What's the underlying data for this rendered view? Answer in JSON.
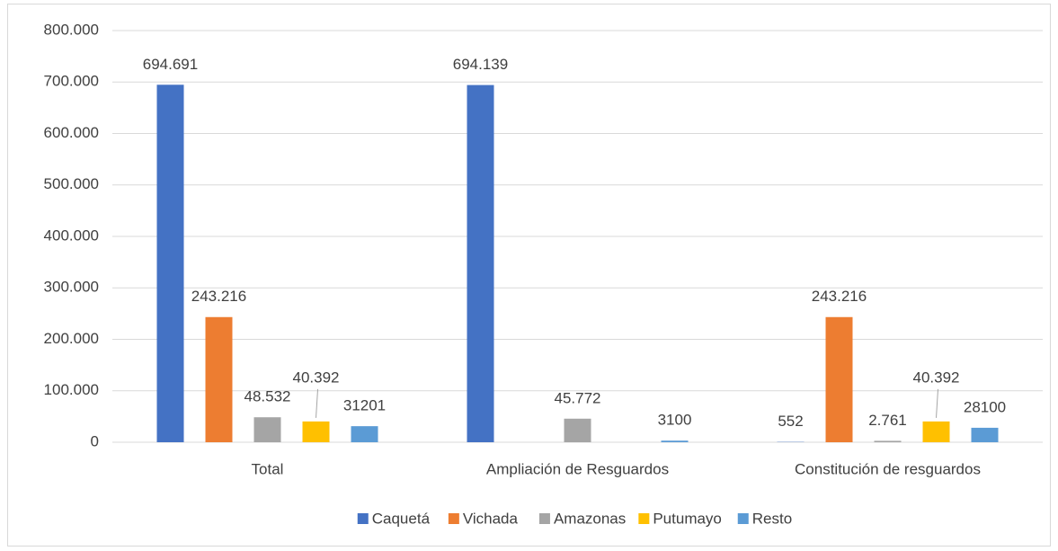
{
  "chart_data": {
    "type": "bar",
    "categories": [
      "Total",
      "Ampliación de Resguardos",
      "Constitución de resguardos"
    ],
    "series": [
      {
        "name": "Caquetá",
        "color": "#4472c4",
        "values": [
          694691,
          694139,
          552
        ],
        "value_labels": [
          "694.691",
          "694.139",
          "552"
        ]
      },
      {
        "name": "Vichada",
        "color": "#ed7d31",
        "values": [
          243216,
          null,
          243216
        ],
        "value_labels": [
          "243.216",
          null,
          "243.216"
        ]
      },
      {
        "name": "Amazonas",
        "color": "#a5a5a5",
        "values": [
          48532,
          45772,
          2761
        ],
        "value_labels": [
          "48.532",
          "45.772",
          "2.761"
        ]
      },
      {
        "name": "Putumayo",
        "color": "#ffc000",
        "values": [
          40392,
          null,
          40392
        ],
        "value_labels": [
          "40.392",
          null,
          "40.392"
        ]
      },
      {
        "name": "Resto",
        "color": "#5b9bd5",
        "values": [
          31201,
          3100,
          28100
        ],
        "value_labels": [
          "31201",
          "3100",
          "28100"
        ]
      }
    ],
    "ylim": [
      0,
      800000
    ],
    "yticks": [
      0,
      {
        "value": 100000,
        "label": "100.000"
      },
      {
        "value": 200000,
        "label": "200.000"
      },
      {
        "value": 300000,
        "label": "300.000"
      },
      {
        "value": 400000,
        "label": "400.000"
      },
      {
        "value": 500000,
        "label": "500.000"
      },
      {
        "value": 600000,
        "label": "600.000"
      },
      {
        "value": 700000,
        "label": "700.000"
      },
      {
        "value": 800000,
        "label": "800.000"
      }
    ],
    "grid": true,
    "legend": "bottom"
  }
}
